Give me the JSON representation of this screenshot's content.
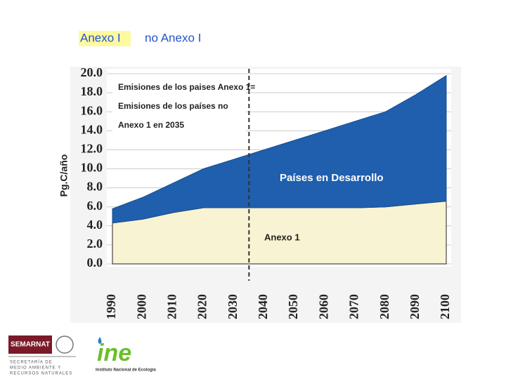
{
  "header": {
    "left": "Anexo I",
    "right": "no Anexo I"
  },
  "chart_data": {
    "type": "stacked_area",
    "ylabel": "Pg.C/año",
    "annotations": [
      "Emisiones de los paises Anexo 1=",
      "Emisiones de los países no",
      "Anexo 1 en 2035"
    ],
    "vline": 2035,
    "x": [
      1990,
      2000,
      2010,
      2020,
      2030,
      2040,
      2050,
      2060,
      2070,
      2080,
      2090,
      2100
    ],
    "xlim": [
      1990,
      2100
    ],
    "xticks": [
      1990,
      2000,
      2010,
      2020,
      2030,
      2040,
      2050,
      2060,
      2070,
      2080,
      2090,
      2100
    ],
    "ylim": [
      0,
      20
    ],
    "yticks": [
      {
        "value": 0,
        "label": "0.0"
      },
      {
        "value": 2,
        "label": "2.0"
      },
      {
        "value": 4,
        "label": "4.0"
      },
      {
        "value": 6,
        "label": "6.0"
      },
      {
        "value": 8,
        "label": "8.0"
      },
      {
        "value": 10,
        "label": "10.0"
      },
      {
        "value": 12,
        "label": "12.0"
      },
      {
        "value": 14,
        "label": "14.0"
      },
      {
        "value": 16,
        "label": "16.0"
      },
      {
        "value": 18,
        "label": "18.0"
      },
      {
        "value": 20,
        "label": "20.0"
      }
    ],
    "grid": true,
    "series": [
      {
        "name": "Anexo 1",
        "color": "#f8f3d2",
        "values": [
          4.3,
          4.7,
          5.4,
          5.9,
          5.9,
          5.9,
          5.9,
          5.9,
          5.9,
          6.0,
          6.3,
          6.6
        ]
      },
      {
        "name": "Países en Desarrollo",
        "color": "#1f5fae",
        "values": [
          1.5,
          2.3,
          3.1,
          4.1,
          5.1,
          6.1,
          7.1,
          8.1,
          9.1,
          10.0,
          11.5,
          13.2
        ]
      }
    ]
  },
  "logos": {
    "semarnat": "SEMARNAT",
    "semarnat_lines": [
      "SECRETARÍA DE",
      "MEDIO AMBIENTE Y",
      "RECURSOS NATURALES"
    ],
    "ine": "ine",
    "ine_caption": "Instituto Nacional de Ecología"
  }
}
